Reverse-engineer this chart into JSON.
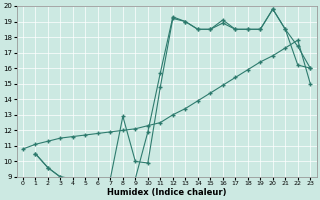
{
  "xlabel": "Humidex (Indice chaleur)",
  "xlim": [
    -0.5,
    23.5
  ],
  "ylim": [
    9,
    20
  ],
  "yticks": [
    9,
    10,
    11,
    12,
    13,
    14,
    15,
    16,
    17,
    18,
    19,
    20
  ],
  "xticks": [
    0,
    1,
    2,
    3,
    4,
    5,
    6,
    7,
    8,
    9,
    10,
    11,
    12,
    13,
    14,
    15,
    16,
    17,
    18,
    19,
    20,
    21,
    22,
    23
  ],
  "bg_color": "#cce9e2",
  "line_color": "#2e7b6e",
  "line1_x": [
    0,
    1,
    2,
    3,
    4,
    5,
    6,
    7,
    8,
    9,
    10,
    11,
    12,
    13,
    14,
    15,
    16,
    17,
    18,
    19,
    20,
    21,
    22,
    23
  ],
  "line1_y": [
    10.8,
    11.1,
    11.3,
    11.5,
    11.6,
    11.7,
    11.8,
    11.9,
    12.0,
    12.1,
    12.3,
    12.5,
    13.0,
    13.4,
    13.9,
    14.4,
    14.9,
    15.4,
    15.9,
    16.4,
    16.8,
    17.3,
    17.8,
    15.0
  ],
  "line2_x": [
    1,
    2,
    3,
    4,
    5,
    6,
    7,
    8,
    9,
    10,
    11,
    12,
    13,
    14,
    15,
    16,
    17,
    18,
    19,
    20,
    21,
    22,
    23
  ],
  "line2_y": [
    10.5,
    9.6,
    9.0,
    8.9,
    8.9,
    8.9,
    8.9,
    8.9,
    8.9,
    11.9,
    15.7,
    19.3,
    19.0,
    18.5,
    18.5,
    19.1,
    18.5,
    18.5,
    18.5,
    19.8,
    18.5,
    16.2,
    16.0
  ],
  "line3_x": [
    1,
    2,
    3,
    4,
    5,
    6,
    7,
    8,
    9,
    10,
    11,
    12,
    13,
    14,
    15,
    16,
    17,
    18,
    19,
    20,
    21,
    22,
    23
  ],
  "line3_y": [
    10.5,
    9.6,
    9.0,
    8.9,
    8.9,
    8.9,
    8.9,
    12.9,
    10.0,
    9.9,
    14.8,
    19.2,
    19.0,
    18.5,
    18.5,
    18.9,
    18.5,
    18.5,
    18.5,
    19.8,
    18.5,
    17.4,
    16.0
  ]
}
